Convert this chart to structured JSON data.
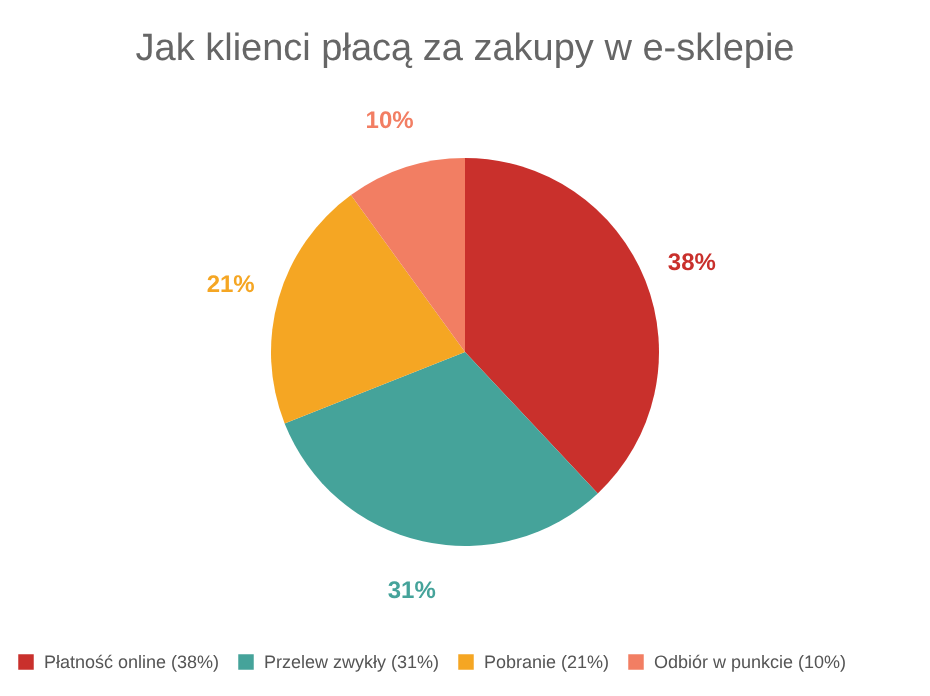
{
  "chart_data": {
    "type": "pie",
    "title": "Jak klienci płacą za zakupy w e-sklepie",
    "categories": [
      "Płatność online (38%)",
      "Przelew zwykły (31%)",
      "Pobranie (21%)",
      "Odbiór w punkcie (10%)"
    ],
    "values": [
      38,
      31,
      21,
      10
    ],
    "colors": [
      "#c9302c",
      "#45a39a",
      "#f5a623",
      "#f27e63"
    ],
    "value_labels": [
      "38%",
      "31%",
      "21%",
      "10%"
    ],
    "legend": "bottom"
  }
}
